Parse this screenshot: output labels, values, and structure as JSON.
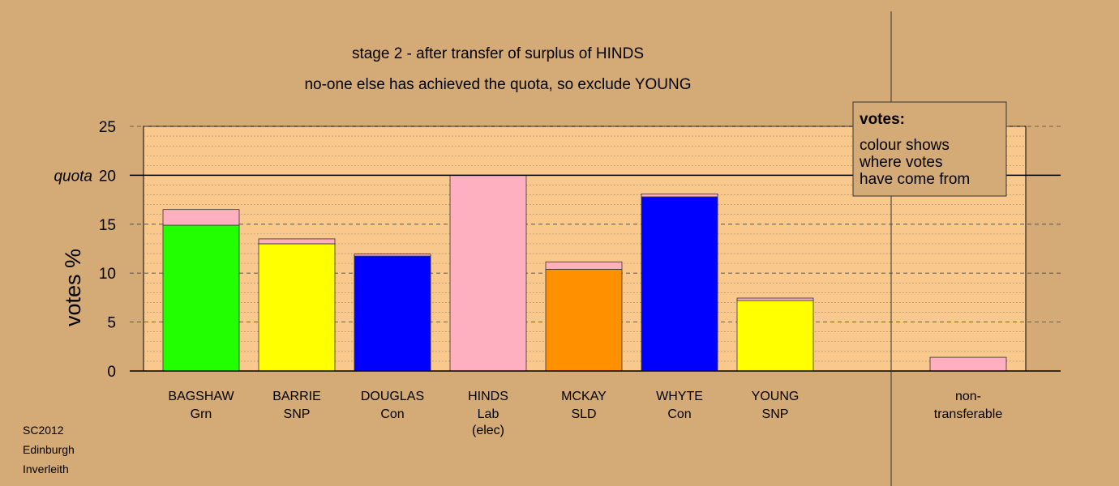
{
  "chart_data": {
    "type": "bar",
    "title": "stage 2 - after transfer of surplus of HINDS",
    "subtitle": "no-one else has achieved the quota, so exclude YOUNG",
    "ylabel": "votes %",
    "ylim": [
      0,
      25
    ],
    "yticks": [
      0,
      5,
      10,
      15,
      20,
      25
    ],
    "quota": {
      "value": 20,
      "label": "quota"
    },
    "grid": true,
    "candidates": [
      {
        "name": "BAGSHAW",
        "party": "Grn",
        "note": "",
        "base": 14.9,
        "base_color": "#22ff00",
        "transfer": 1.6,
        "transfer_color": "#ffb0c0"
      },
      {
        "name": "BARRIE",
        "party": "SNP",
        "note": "",
        "base": 13.0,
        "base_color": "#ffff00",
        "transfer": 0.5,
        "transfer_color": "#ffb0c0"
      },
      {
        "name": "DOUGLAS",
        "party": "Con",
        "note": "",
        "base": 11.75,
        "base_color": "#0000ff",
        "transfer": 0.2,
        "transfer_color": "#ffb0c0"
      },
      {
        "name": "HINDS",
        "party": "Lab",
        "note": "(elec)",
        "base": 20.0,
        "base_color": "#ffb0c0",
        "transfer": 0,
        "transfer_color": "#ffb0c0"
      },
      {
        "name": "MCKAY",
        "party": "SLD",
        "note": "",
        "base": 10.4,
        "base_color": "#ff9000",
        "transfer": 0.75,
        "transfer_color": "#ffb0c0"
      },
      {
        "name": "WHYTE",
        "party": "Con",
        "note": "",
        "base": 17.8,
        "base_color": "#0000ff",
        "transfer": 0.3,
        "transfer_color": "#ffb0c0"
      },
      {
        "name": "YOUNG",
        "party": "SNP",
        "note": "",
        "base": 7.2,
        "base_color": "#ffff00",
        "transfer": 0.25,
        "transfer_color": "#ffb0c0"
      }
    ],
    "nontransferable": {
      "label_line1": "non-",
      "label_line2": "transferable",
      "value": 1.4,
      "color": "#ffb0c0"
    },
    "legend": {
      "title": "votes:",
      "lines": [
        "colour shows",
        "where votes",
        "have come from"
      ],
      "placement": "top-right"
    },
    "footer": [
      "SC2012",
      "Edinburgh",
      "Inverleith"
    ],
    "colors": {
      "background": "#d4aa76",
      "plot_background": "#f9c88c",
      "transfer": "#ffb0c0"
    }
  }
}
